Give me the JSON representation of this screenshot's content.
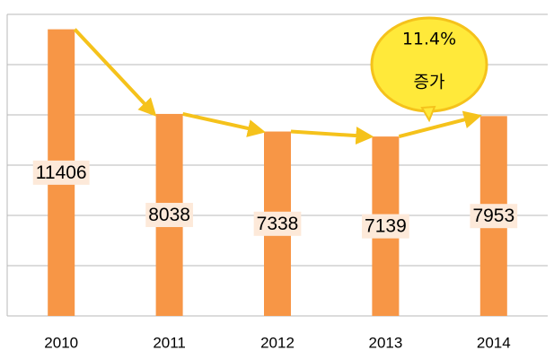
{
  "chart_data": {
    "type": "bar",
    "categories": [
      "2010",
      "2011",
      "2012",
      "2013",
      "2014"
    ],
    "values": [
      11406,
      8038,
      7338,
      7139,
      7953
    ],
    "color": "#f79646",
    "ylim": [
      0,
      12000
    ],
    "yticks": [
      0,
      2000,
      4000,
      6000,
      8000,
      10000,
      12000
    ],
    "grid": true,
    "annotations": [
      "11.4%",
      "증가"
    ]
  }
}
